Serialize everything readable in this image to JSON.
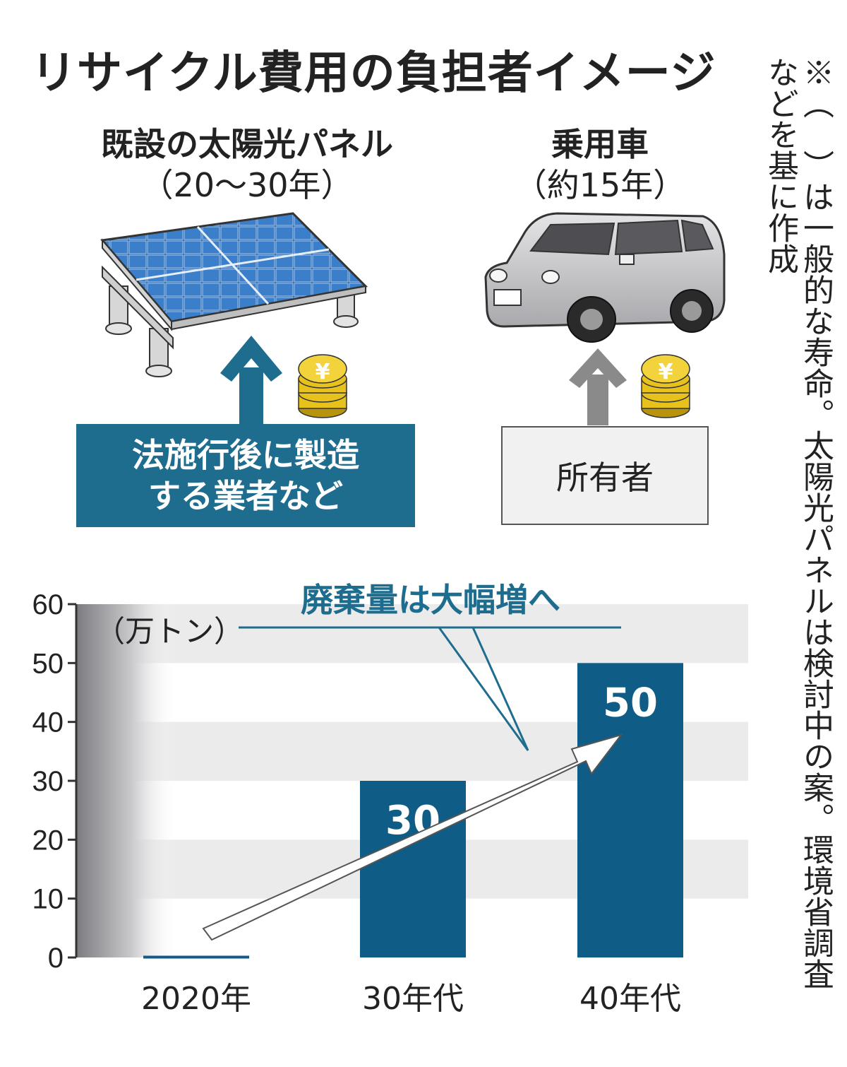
{
  "title": "リサイクル費用の負担者イメージ",
  "solar": {
    "label": "既設の太陽光パネル",
    "lifespan": "（20～30年）",
    "payer": "法施行後に製造\nする業者など"
  },
  "car": {
    "label": "乗用車",
    "lifespan": "（約15年）",
    "payer": "所有者"
  },
  "icons": [
    "solar-panel-icon",
    "car-icon",
    "up-arrow-icon",
    "yen-coin-stack-icon"
  ],
  "note": "※（　）は一般的な寿命。太陽光パネルは検討中の案。環境省調査\nなどを基に作成",
  "colors": {
    "accent": "#1e6d8f",
    "bar": "#0f5d86",
    "band": "#ebebeb",
    "gray_arrow": "#8a8a8a",
    "coin": "#e8c21c"
  },
  "chart_data": {
    "type": "bar",
    "categories": [
      "2020年",
      "30年代",
      "40年代"
    ],
    "values": [
      0.3,
      30,
      50
    ],
    "value_labels": [
      "",
      "30",
      "50"
    ],
    "unit": "（万トン）",
    "callout": "廃棄量は大幅増へ",
    "ylim": [
      0,
      60
    ],
    "yticks": [
      0,
      10,
      20,
      30,
      40,
      50,
      60
    ],
    "grid": "alternating bands",
    "legend": "none"
  }
}
